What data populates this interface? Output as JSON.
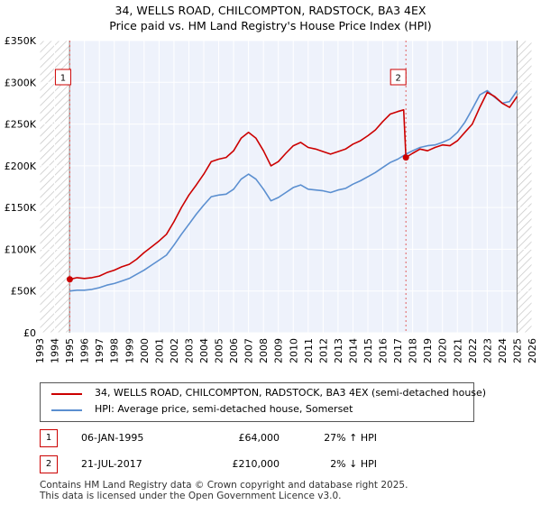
{
  "chart_data": {
    "type": "line",
    "title": "34, WELLS ROAD, CHILCOMPTON, RADSTOCK, BA3 4EX",
    "subtitle": "Price paid vs. HM Land Registry's House Price Index (HPI)",
    "xlabel": "",
    "ylabel": "",
    "xlim": [
      1993,
      2026
    ],
    "ylim": [
      0,
      350000
    ],
    "x_ticks": [
      1993,
      1994,
      1995,
      1996,
      1997,
      1998,
      1999,
      2000,
      2001,
      2002,
      2003,
      2004,
      2005,
      2006,
      2007,
      2008,
      2009,
      2010,
      2011,
      2012,
      2013,
      2014,
      2015,
      2016,
      2017,
      2018,
      2019,
      2020,
      2021,
      2022,
      2023,
      2024,
      2025,
      2026
    ],
    "y_ticks": [
      0,
      50000,
      100000,
      150000,
      200000,
      250000,
      300000,
      350000
    ],
    "y_tick_labels": [
      "£0",
      "£50K",
      "£100K",
      "£150K",
      "£200K",
      "£250K",
      "£300K",
      "£350K"
    ],
    "grid": true,
    "hatched_regions": [
      [
        1993,
        1995.0
      ],
      [
        2025.0,
        2026
      ]
    ],
    "series": [
      {
        "name": "34, WELLS ROAD, CHILCOMPTON, RADSTOCK, BA3 4EX (semi-detached house)",
        "color": "#cc0000",
        "x": [
          1995.02,
          1995.5,
          1996,
          1996.5,
          1997,
          1997.5,
          1998,
          1998.5,
          1999,
          1999.5,
          2000,
          2000.5,
          2001,
          2001.5,
          2002,
          2002.5,
          2003,
          2003.5,
          2004,
          2004.5,
          2005,
          2005.5,
          2006,
          2006.5,
          2007,
          2007.5,
          2008,
          2008.5,
          2009,
          2009.5,
          2010,
          2010.5,
          2011,
          2011.5,
          2012,
          2012.5,
          2013,
          2013.5,
          2014,
          2014.5,
          2015,
          2015.5,
          2016,
          2016.5,
          2017,
          2017.4,
          2017.55,
          2018,
          2018.5,
          2019,
          2019.5,
          2020,
          2020.5,
          2021,
          2021.5,
          2022,
          2022.5,
          2023,
          2023.5,
          2024,
          2024.5,
          2025
        ],
        "y": [
          64000,
          66000,
          65000,
          66000,
          68000,
          72000,
          75000,
          79000,
          82000,
          88000,
          96000,
          103000,
          110000,
          118000,
          133000,
          150000,
          165000,
          177000,
          190000,
          205000,
          208000,
          210000,
          218000,
          233000,
          240000,
          233000,
          218000,
          200000,
          205000,
          215000,
          224000,
          228000,
          222000,
          220000,
          217000,
          214000,
          217000,
          220000,
          226000,
          230000,
          236000,
          243000,
          253000,
          262000,
          265000,
          267000,
          210000,
          215000,
          220000,
          218000,
          222000,
          225000,
          224000,
          230000,
          240000,
          250000,
          270000,
          288000,
          283000,
          275000,
          270000,
          283000
        ]
      },
      {
        "name": "HPI: Average price, semi-detached house, Somerset",
        "color": "#5b8fd0",
        "x": [
          1995.02,
          1995.5,
          1996,
          1996.5,
          1997,
          1997.5,
          1998,
          1998.5,
          1999,
          1999.5,
          2000,
          2000.5,
          2001,
          2001.5,
          2002,
          2002.5,
          2003,
          2003.5,
          2004,
          2004.5,
          2005,
          2005.5,
          2006,
          2006.5,
          2007,
          2007.5,
          2008,
          2008.5,
          2009,
          2009.5,
          2010,
          2010.5,
          2011,
          2011.5,
          2012,
          2012.5,
          2013,
          2013.5,
          2014,
          2014.5,
          2015,
          2015.5,
          2016,
          2016.5,
          2017,
          2017.55,
          2018,
          2018.5,
          2019,
          2019.5,
          2020,
          2020.5,
          2021,
          2021.5,
          2022,
          2022.5,
          2023,
          2023.5,
          2024,
          2024.5,
          2025
        ],
        "y": [
          50000,
          51000,
          51000,
          52000,
          54000,
          57000,
          59000,
          62000,
          65000,
          70000,
          75000,
          81000,
          87000,
          93000,
          105000,
          118000,
          130000,
          142000,
          153000,
          163000,
          165000,
          166000,
          172000,
          184000,
          190000,
          184000,
          172000,
          158000,
          162000,
          168000,
          174000,
          177000,
          172000,
          171000,
          170000,
          168000,
          171000,
          173000,
          178000,
          182000,
          187000,
          192000,
          198000,
          204000,
          208000,
          214000,
          218000,
          222000,
          224000,
          225000,
          228000,
          232000,
          240000,
          252000,
          268000,
          285000,
          290000,
          282000,
          275000,
          277000,
          290000
        ]
      }
    ],
    "transactions": [
      {
        "id": "1",
        "x": 1995.02,
        "y": 64000
      },
      {
        "id": "2",
        "x": 2017.55,
        "y": 210000
      }
    ],
    "legend_position": "below"
  },
  "table": [
    {
      "num": "1",
      "date": "06-JAN-1995",
      "price": "£64,000",
      "hpi": "27% ↑ HPI"
    },
    {
      "num": "2",
      "date": "21-JUL-2017",
      "price": "£210,000",
      "hpi": "2% ↓ HPI"
    }
  ],
  "footer": {
    "line1": "Contains HM Land Registry data © Crown copyright and database right 2025.",
    "line2": "This data is licensed under the Open Government Licence v3.0."
  }
}
